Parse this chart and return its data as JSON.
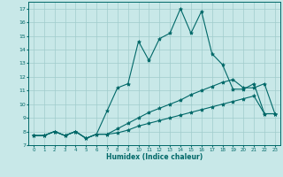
{
  "xlabel": "Humidex (Indice chaleur)",
  "bg_color": "#c8e8e8",
  "grid_color": "#a0cccc",
  "line_color": "#006868",
  "xlim": [
    -0.5,
    23.5
  ],
  "ylim": [
    7,
    17.5
  ],
  "yticks": [
    7,
    8,
    9,
    10,
    11,
    12,
    13,
    14,
    15,
    16,
    17
  ],
  "xticks": [
    0,
    1,
    2,
    3,
    4,
    5,
    6,
    7,
    8,
    9,
    10,
    11,
    12,
    13,
    14,
    15,
    16,
    17,
    18,
    19,
    20,
    21,
    22,
    23
  ],
  "series": [
    {
      "x": [
        0,
        1,
        2,
        3,
        4,
        5,
        6,
        7,
        8,
        9,
        10,
        11,
        12,
        13,
        14,
        15,
        16,
        17,
        18,
        19,
        20,
        21,
        22,
        23
      ],
      "y": [
        7.7,
        7.7,
        8.0,
        7.7,
        8.0,
        7.5,
        7.8,
        9.5,
        11.2,
        11.5,
        14.6,
        13.2,
        14.8,
        15.2,
        17.0,
        15.2,
        16.8,
        13.7,
        12.9,
        11.1,
        11.1,
        11.5,
        9.3,
        9.3
      ]
    },
    {
      "x": [
        0,
        1,
        2,
        3,
        4,
        5,
        6,
        7,
        8,
        9,
        10,
        11,
        12,
        13,
        14,
        15,
        16,
        17,
        18,
        19,
        20,
        21,
        22,
        23
      ],
      "y": [
        7.7,
        7.7,
        8.0,
        7.7,
        8.0,
        7.5,
        7.8,
        7.8,
        8.2,
        8.6,
        9.0,
        9.4,
        9.7,
        10.0,
        10.3,
        10.7,
        11.0,
        11.3,
        11.6,
        11.8,
        11.2,
        11.2,
        11.5,
        9.3
      ]
    },
    {
      "x": [
        0,
        1,
        2,
        3,
        4,
        5,
        6,
        7,
        8,
        9,
        10,
        11,
        12,
        13,
        14,
        15,
        16,
        17,
        18,
        19,
        20,
        21,
        22,
        23
      ],
      "y": [
        7.7,
        7.7,
        8.0,
        7.7,
        8.0,
        7.5,
        7.8,
        7.8,
        7.9,
        8.1,
        8.4,
        8.6,
        8.8,
        9.0,
        9.2,
        9.4,
        9.6,
        9.8,
        10.0,
        10.2,
        10.4,
        10.6,
        9.3,
        9.3
      ]
    }
  ]
}
